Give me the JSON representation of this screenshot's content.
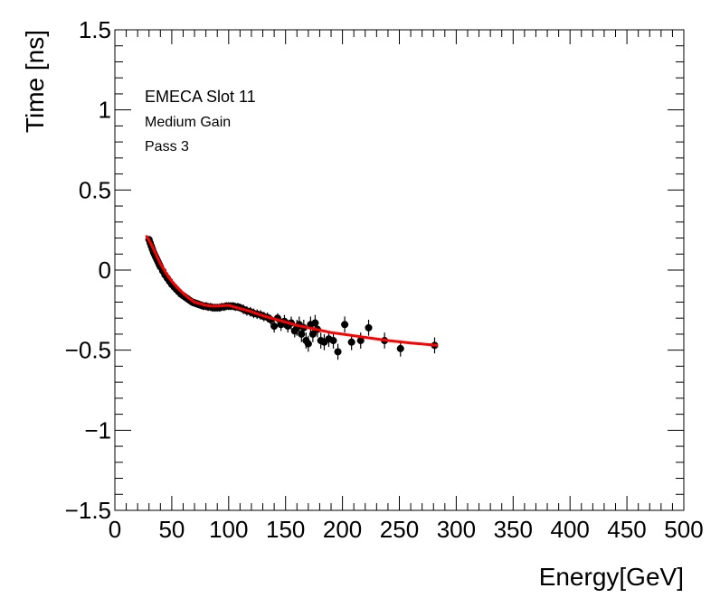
{
  "chart_data": {
    "type": "scatter",
    "title": "",
    "xlabel": "Energy[GeV]",
    "ylabel": "Time [ns]",
    "xlim": [
      0,
      500
    ],
    "ylim": [
      -1.5,
      1.5
    ],
    "x_ticks": [
      "0",
      "50",
      "100",
      "150",
      "200",
      "250",
      "300",
      "350",
      "400",
      "450",
      "500"
    ],
    "y_ticks": [
      "−1.5",
      "−1",
      "−0.5",
      "0",
      "0.5",
      "1",
      "1.5"
    ],
    "grid": false,
    "legend": "none",
    "annotations": [
      "EMECA Slot 11",
      "Medium Gain",
      "Pass 3"
    ],
    "colors": {
      "points": "#000000",
      "fit": "#ff0000",
      "frame": "#000000"
    },
    "series": [
      {
        "kind": "points",
        "x": [
          30,
          31,
          32,
          33,
          34,
          35,
          36,
          37,
          38,
          39,
          40,
          42,
          44,
          46,
          48,
          50,
          52,
          54,
          56,
          58,
          60,
          62,
          64,
          66,
          68,
          70,
          72,
          74,
          76,
          78,
          80,
          82,
          84,
          86,
          88,
          90,
          92,
          94,
          96,
          98,
          100,
          102,
          104,
          106,
          108,
          110,
          113,
          116,
          119,
          122,
          125,
          128,
          131,
          134,
          137,
          140,
          143,
          146,
          149,
          152,
          155,
          158,
          160,
          162,
          164,
          166,
          168,
          170,
          172,
          174,
          176,
          178,
          181,
          184,
          188,
          192,
          196,
          202,
          208,
          216,
          223,
          237,
          251,
          281
        ],
        "y": [
          0.19,
          0.17,
          0.15,
          0.13,
          0.11,
          0.095,
          0.08,
          0.065,
          0.05,
          0.035,
          0.02,
          -0.005,
          -0.03,
          -0.05,
          -0.07,
          -0.09,
          -0.105,
          -0.12,
          -0.135,
          -0.15,
          -0.16,
          -0.17,
          -0.18,
          -0.19,
          -0.2,
          -0.205,
          -0.21,
          -0.215,
          -0.22,
          -0.225,
          -0.225,
          -0.23,
          -0.23,
          -0.235,
          -0.235,
          -0.235,
          -0.235,
          -0.23,
          -0.23,
          -0.225,
          -0.225,
          -0.225,
          -0.225,
          -0.23,
          -0.23,
          -0.235,
          -0.245,
          -0.255,
          -0.26,
          -0.27,
          -0.275,
          -0.28,
          -0.29,
          -0.295,
          -0.31,
          -0.35,
          -0.3,
          -0.34,
          -0.32,
          -0.35,
          -0.33,
          -0.38,
          -0.36,
          -0.34,
          -0.4,
          -0.36,
          -0.44,
          -0.46,
          -0.34,
          -0.4,
          -0.33,
          -0.37,
          -0.44,
          -0.45,
          -0.43,
          -0.44,
          -0.51,
          -0.34,
          -0.45,
          -0.44,
          -0.36,
          -0.44,
          -0.49,
          -0.47
        ],
        "yerr": [
          0.02,
          0.02,
          0.02,
          0.02,
          0.02,
          0.02,
          0.02,
          0.02,
          0.02,
          0.02,
          0.02,
          0.02,
          0.02,
          0.02,
          0.02,
          0.02,
          0.02,
          0.02,
          0.02,
          0.02,
          0.02,
          0.02,
          0.025,
          0.025,
          0.025,
          0.025,
          0.025,
          0.025,
          0.025,
          0.025,
          0.025,
          0.025,
          0.025,
          0.025,
          0.025,
          0.025,
          0.025,
          0.025,
          0.025,
          0.025,
          0.025,
          0.025,
          0.025,
          0.025,
          0.025,
          0.025,
          0.03,
          0.03,
          0.03,
          0.03,
          0.03,
          0.03,
          0.03,
          0.03,
          0.03,
          0.04,
          0.03,
          0.04,
          0.04,
          0.04,
          0.04,
          0.04,
          0.05,
          0.05,
          0.05,
          0.05,
          0.05,
          0.05,
          0.05,
          0.05,
          0.05,
          0.05,
          0.05,
          0.05,
          0.05,
          0.05,
          0.05,
          0.05,
          0.05,
          0.05,
          0.05,
          0.05,
          0.05,
          0.05
        ]
      },
      {
        "kind": "fit",
        "x": [
          28,
          32,
          36,
          40,
          45,
          50,
          55,
          60,
          65,
          70,
          75,
          80,
          85,
          90,
          95,
          100,
          105,
          110,
          120,
          130,
          140,
          150,
          160,
          170,
          180,
          190,
          200,
          220,
          240,
          260,
          283
        ],
        "y": [
          0.21,
          0.16,
          0.1,
          0.04,
          -0.02,
          -0.07,
          -0.11,
          -0.145,
          -0.175,
          -0.2,
          -0.21,
          -0.22,
          -0.225,
          -0.225,
          -0.222,
          -0.22,
          -0.23,
          -0.24,
          -0.26,
          -0.285,
          -0.305,
          -0.325,
          -0.345,
          -0.36,
          -0.375,
          -0.39,
          -0.4,
          -0.42,
          -0.44,
          -0.455,
          -0.47
        ]
      }
    ]
  }
}
